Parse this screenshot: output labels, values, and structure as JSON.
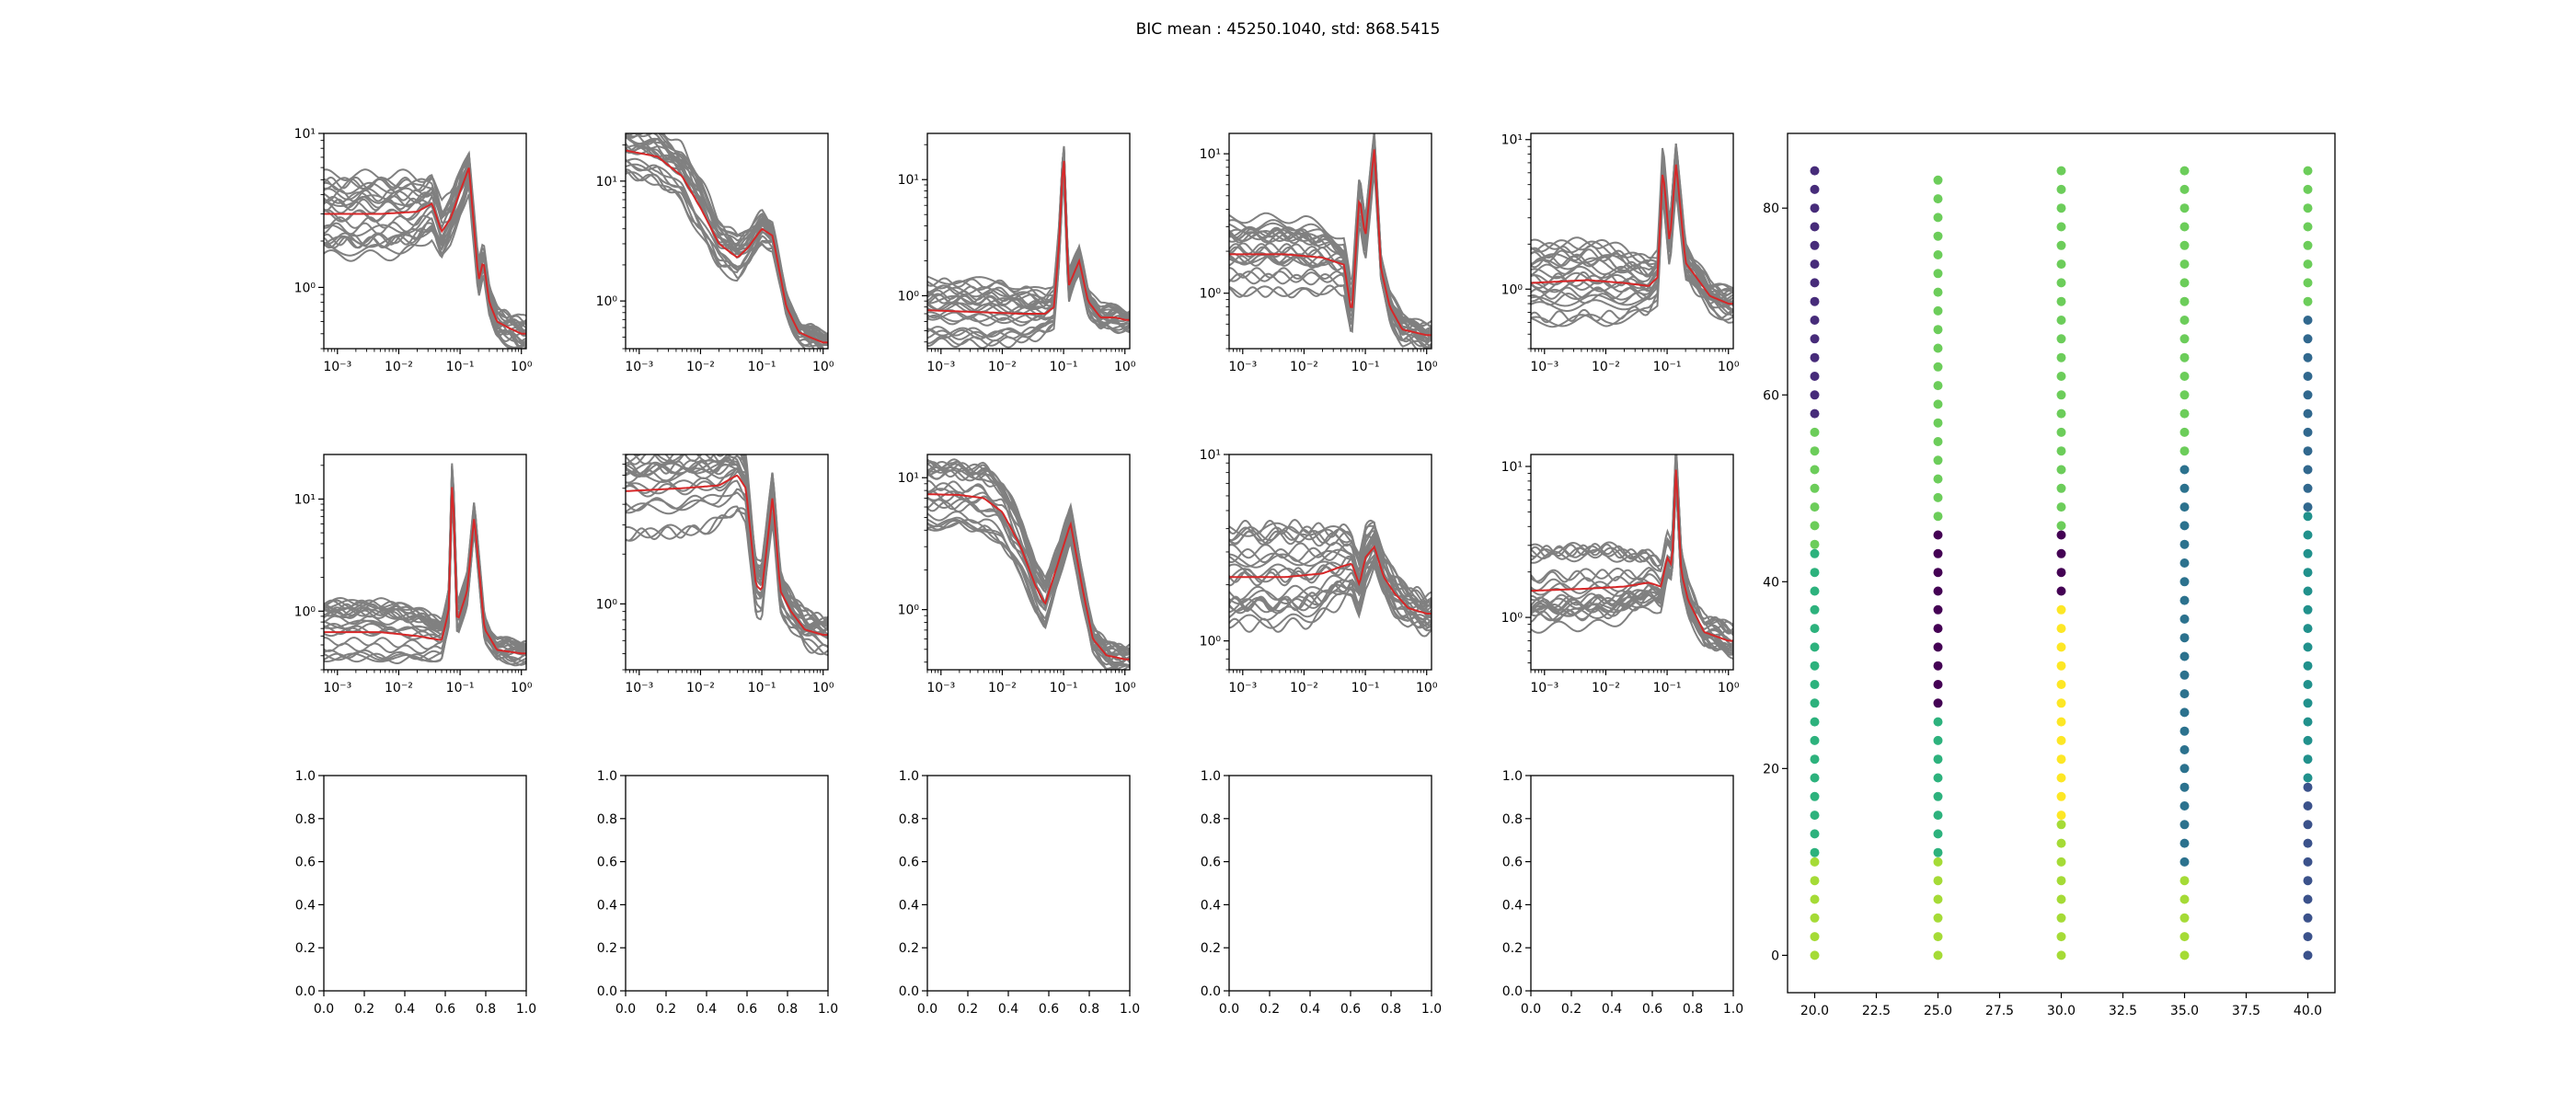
{
  "figure": {
    "suptitle": "BIC mean : 45250.1040, std: 868.5415"
  },
  "chart_data": [
    {
      "type": "line",
      "yscale": "log",
      "xscale": "log",
      "xlim": [
        0.0006,
        1.2
      ],
      "ylim": [
        0.4,
        10
      ],
      "xticks": [
        "10⁻³",
        "10⁻²",
        "10⁻¹",
        "10⁰"
      ],
      "xtick_values": [
        0.001,
        0.01,
        0.1,
        1
      ],
      "yticks": [
        "10⁰",
        "10¹"
      ],
      "ytick_values": [
        1,
        10
      ],
      "mean_profile": {
        "x": [
          0.0006,
          0.005,
          0.02,
          0.035,
          0.05,
          0.07,
          0.1,
          0.14,
          0.2,
          0.24,
          0.3,
          0.4,
          0.6,
          1.0
        ],
        "y": [
          3.0,
          3.0,
          3.1,
          3.5,
          2.3,
          2.8,
          4.2,
          6.0,
          1.1,
          1.5,
          0.8,
          0.6,
          0.55,
          0.5
        ]
      },
      "series_count": 24
    },
    {
      "type": "line",
      "yscale": "log",
      "xscale": "log",
      "xlim": [
        0.0006,
        1.2
      ],
      "ylim": [
        0.4,
        25
      ],
      "xticks": [
        "10⁻³",
        "10⁻²",
        "10⁻¹",
        "10⁰"
      ],
      "xtick_values": [
        0.001,
        0.01,
        0.1,
        1
      ],
      "yticks": [
        "10⁰",
        "10¹"
      ],
      "ytick_values": [
        1,
        10
      ],
      "mean_profile": {
        "x": [
          0.0006,
          0.002,
          0.005,
          0.01,
          0.02,
          0.04,
          0.06,
          0.1,
          0.15,
          0.25,
          0.4,
          0.6,
          1.0
        ],
        "y": [
          18,
          16,
          11,
          6,
          3,
          2.3,
          2.8,
          4.0,
          3.5,
          0.9,
          0.55,
          0.5,
          0.45
        ]
      },
      "series_count": 24
    },
    {
      "type": "line",
      "yscale": "log",
      "xscale": "log",
      "xlim": [
        0.0006,
        1.2
      ],
      "ylim": [
        0.35,
        25
      ],
      "xticks": [
        "10⁻³",
        "10⁻²",
        "10⁻¹",
        "10⁰"
      ],
      "xtick_values": [
        0.001,
        0.01,
        0.1,
        1
      ],
      "yticks": [
        "10⁰",
        "10¹"
      ],
      "ytick_values": [
        1,
        10
      ],
      "mean_profile": {
        "x": [
          0.0006,
          0.005,
          0.02,
          0.05,
          0.07,
          0.085,
          0.1,
          0.12,
          0.18,
          0.25,
          0.4,
          0.7,
          1.0
        ],
        "y": [
          0.75,
          0.72,
          0.7,
          0.7,
          0.8,
          3.0,
          18,
          1.2,
          2.0,
          0.9,
          0.65,
          0.65,
          0.62
        ]
      },
      "series_count": 24
    },
    {
      "type": "line",
      "yscale": "log",
      "xscale": "log",
      "xlim": [
        0.0006,
        1.2
      ],
      "ylim": [
        0.4,
        14
      ],
      "xticks": [
        "10⁻³",
        "10⁻²",
        "10⁻¹",
        "10⁰"
      ],
      "xtick_values": [
        0.001,
        0.01,
        0.1,
        1
      ],
      "yticks": [
        "10⁰",
        "10¹"
      ],
      "ytick_values": [
        1,
        10
      ],
      "mean_profile": {
        "x": [
          0.0006,
          0.005,
          0.02,
          0.045,
          0.06,
          0.08,
          0.1,
          0.14,
          0.18,
          0.25,
          0.4,
          1.0
        ],
        "y": [
          1.9,
          1.9,
          1.8,
          1.6,
          0.7,
          5.0,
          2.5,
          11,
          1.5,
          0.8,
          0.55,
          0.5
        ]
      },
      "series_count": 24
    },
    {
      "type": "line",
      "yscale": "log",
      "xscale": "log",
      "xlim": [
        0.0006,
        1.2
      ],
      "ylim": [
        0.4,
        11
      ],
      "xticks": [
        "10⁻³",
        "10⁻²",
        "10⁻¹",
        "10⁰"
      ],
      "xtick_values": [
        0.001,
        0.01,
        0.1,
        1
      ],
      "yticks": [
        "10⁰",
        "10¹"
      ],
      "ytick_values": [
        1,
        10
      ],
      "mean_profile": {
        "x": [
          0.0006,
          0.005,
          0.02,
          0.05,
          0.07,
          0.085,
          0.11,
          0.14,
          0.2,
          0.3,
          0.5,
          1.0
        ],
        "y": [
          1.1,
          1.15,
          1.1,
          1.05,
          1.2,
          6.5,
          2.0,
          7.0,
          1.5,
          1.2,
          0.9,
          0.8
        ]
      },
      "series_count": 24
    },
    {
      "type": "line",
      "yscale": "log",
      "xscale": "log",
      "xlim": [
        0.0006,
        1.2
      ],
      "ylim": [
        0.3,
        25
      ],
      "xticks": [
        "10⁻³",
        "10⁻²",
        "10⁻¹",
        "10⁰"
      ],
      "xtick_values": [
        0.001,
        0.01,
        0.1,
        1
      ],
      "yticks": [
        "10⁰",
        "10¹"
      ],
      "ytick_values": [
        1,
        10
      ],
      "mean_profile": {
        "x": [
          0.0006,
          0.005,
          0.02,
          0.05,
          0.065,
          0.075,
          0.09,
          0.13,
          0.17,
          0.25,
          0.4,
          1.0
        ],
        "y": [
          0.65,
          0.65,
          0.6,
          0.55,
          1.0,
          17,
          0.8,
          1.5,
          7.0,
          0.7,
          0.45,
          0.42
        ]
      },
      "series_count": 24
    },
    {
      "type": "line",
      "yscale": "log",
      "xscale": "log",
      "xlim": [
        0.0006,
        1.2
      ],
      "ylim": [
        0.4,
        8
      ],
      "xticks": [
        "10⁻³",
        "10⁻²",
        "10⁻¹",
        "10⁰"
      ],
      "xtick_values": [
        0.001,
        0.01,
        0.1,
        1
      ],
      "yticks": [
        "10⁰"
      ],
      "ytick_values": [
        1
      ],
      "mean_profile": {
        "x": [
          0.0006,
          0.005,
          0.02,
          0.04,
          0.055,
          0.08,
          0.1,
          0.15,
          0.2,
          0.3,
          0.5,
          1.0
        ],
        "y": [
          4.8,
          5.0,
          5.2,
          6.0,
          5.0,
          1.3,
          1.2,
          4.5,
          1.2,
          0.9,
          0.7,
          0.65
        ]
      },
      "series_count": 24
    },
    {
      "type": "line",
      "yscale": "log",
      "xscale": "log",
      "xlim": [
        0.0006,
        1.2
      ],
      "ylim": [
        0.35,
        15
      ],
      "xticks": [
        "10⁻³",
        "10⁻²",
        "10⁻¹",
        "10⁰"
      ],
      "xtick_values": [
        0.001,
        0.01,
        0.1,
        1
      ],
      "yticks": [
        "10⁰",
        "10¹"
      ],
      "ytick_values": [
        1,
        10
      ],
      "mean_profile": {
        "x": [
          0.0006,
          0.002,
          0.005,
          0.01,
          0.02,
          0.035,
          0.05,
          0.08,
          0.13,
          0.2,
          0.3,
          0.5,
          1.0
        ],
        "y": [
          7.5,
          7.4,
          7.0,
          5.5,
          3.0,
          1.5,
          1.1,
          2.2,
          4.5,
          1.5,
          0.6,
          0.45,
          0.42
        ]
      },
      "series_count": 24
    },
    {
      "type": "line",
      "yscale": "log",
      "xscale": "log",
      "xlim": [
        0.0006,
        1.2
      ],
      "ylim": [
        0.7,
        10
      ],
      "xticks": [
        "10⁻³",
        "10⁻²",
        "10⁻¹",
        "10⁰"
      ],
      "xtick_values": [
        0.001,
        0.01,
        0.1,
        1
      ],
      "yticks": [
        "10⁰",
        "10¹"
      ],
      "ytick_values": [
        1,
        10
      ],
      "mean_profile": {
        "x": [
          0.0006,
          0.005,
          0.02,
          0.04,
          0.06,
          0.08,
          0.1,
          0.14,
          0.2,
          0.3,
          0.5,
          1.0
        ],
        "y": [
          2.2,
          2.2,
          2.3,
          2.5,
          2.6,
          2.0,
          2.8,
          3.2,
          2.2,
          1.8,
          1.5,
          1.4
        ]
      },
      "series_count": 24
    },
    {
      "type": "line",
      "yscale": "log",
      "xscale": "log",
      "xlim": [
        0.0006,
        1.2
      ],
      "ylim": [
        0.45,
        12
      ],
      "xticks": [
        "10⁻³",
        "10⁻²",
        "10⁻¹",
        "10⁰"
      ],
      "xtick_values": [
        0.001,
        0.01,
        0.1,
        1
      ],
      "yticks": [
        "10⁰",
        "10¹"
      ],
      "ytick_values": [
        1,
        10
      ],
      "mean_profile": {
        "x": [
          0.0006,
          0.005,
          0.02,
          0.05,
          0.08,
          0.1,
          0.12,
          0.14,
          0.17,
          0.22,
          0.4,
          1.0
        ],
        "y": [
          1.5,
          1.55,
          1.6,
          1.7,
          1.6,
          2.5,
          2.2,
          10,
          2.0,
          1.3,
          0.8,
          0.7
        ]
      },
      "series_count": 24
    },
    {
      "type": "empty",
      "xlim": [
        0,
        1
      ],
      "ylim": [
        0,
        1
      ],
      "ticks": [
        "0.0",
        "0.2",
        "0.4",
        "0.6",
        "0.8",
        "1.0"
      ]
    },
    {
      "type": "empty",
      "xlim": [
        0,
        1
      ],
      "ylim": [
        0,
        1
      ],
      "ticks": [
        "0.0",
        "0.2",
        "0.4",
        "0.6",
        "0.8",
        "1.0"
      ]
    },
    {
      "type": "empty",
      "xlim": [
        0,
        1
      ],
      "ylim": [
        0,
        1
      ],
      "ticks": [
        "0.0",
        "0.2",
        "0.4",
        "0.6",
        "0.8",
        "1.0"
      ]
    },
    {
      "type": "empty",
      "xlim": [
        0,
        1
      ],
      "ylim": [
        0,
        1
      ],
      "ticks": [
        "0.0",
        "0.2",
        "0.4",
        "0.6",
        "0.8",
        "1.0"
      ]
    },
    {
      "type": "empty",
      "xlim": [
        0,
        1
      ],
      "ylim": [
        0,
        1
      ],
      "ticks": [
        "0.0",
        "0.2",
        "0.4",
        "0.6",
        "0.8",
        "1.0"
      ]
    },
    {
      "type": "scatter",
      "xlim": [
        18.9,
        41.1
      ],
      "ylim": [
        -4,
        88
      ],
      "xticks": [
        "20.0",
        "22.5",
        "25.0",
        "27.5",
        "30.0",
        "32.5",
        "35.0",
        "37.5",
        "40.0"
      ],
      "xtick_values": [
        20,
        22.5,
        25,
        27.5,
        30,
        32.5,
        35,
        37.5,
        40
      ],
      "yticks": [
        "0",
        "20",
        "40",
        "60",
        "80"
      ],
      "ytick_values": [
        0,
        20,
        40,
        60,
        80
      ],
      "columns": [
        {
          "x": 20,
          "segments": [
            {
              "from": 0,
              "to": 10,
              "color": "#a5db36"
            },
            {
              "from": 11,
              "to": 43,
              "color": "#2db27d"
            },
            {
              "from": 44,
              "to": 57,
              "color": "#6ccd5a"
            },
            {
              "from": 58,
              "to": 84,
              "color": "#472c7a"
            }
          ]
        },
        {
          "x": 25,
          "segments": [
            {
              "from": 0,
              "to": 10,
              "color": "#a5db36"
            },
            {
              "from": 11,
              "to": 26,
              "color": "#2db27d"
            },
            {
              "from": 27,
              "to": 46,
              "color": "#440154"
            },
            {
              "from": 47,
              "to": 84,
              "color": "#6ccd5a"
            }
          ]
        },
        {
          "x": 30,
          "segments": [
            {
              "from": 0,
              "to": 14,
              "color": "#a5db36"
            },
            {
              "from": 15,
              "to": 38,
              "color": "#fde725"
            },
            {
              "from": 39,
              "to": 45,
              "color": "#440154"
            },
            {
              "from": 46,
              "to": 84,
              "color": "#6ccd5a"
            }
          ]
        },
        {
          "x": 35,
          "segments": [
            {
              "from": 0,
              "to": 9,
              "color": "#a5db36"
            },
            {
              "from": 10,
              "to": 53,
              "color": "#2c728e"
            },
            {
              "from": 54,
              "to": 84,
              "color": "#6ccd5a"
            }
          ]
        },
        {
          "x": 40,
          "segments": [
            {
              "from": 0,
              "to": 18,
              "color": "#3b528b"
            },
            {
              "from": 19,
              "to": 47,
              "color": "#21918c"
            },
            {
              "from": 48,
              "to": 69,
              "color": "#31688e"
            },
            {
              "from": 70,
              "to": 84,
              "color": "#6ccd5a"
            }
          ]
        }
      ]
    }
  ],
  "colors": {
    "ensemble": "#808080",
    "mean": "#d62728",
    "axes": "#000000"
  }
}
